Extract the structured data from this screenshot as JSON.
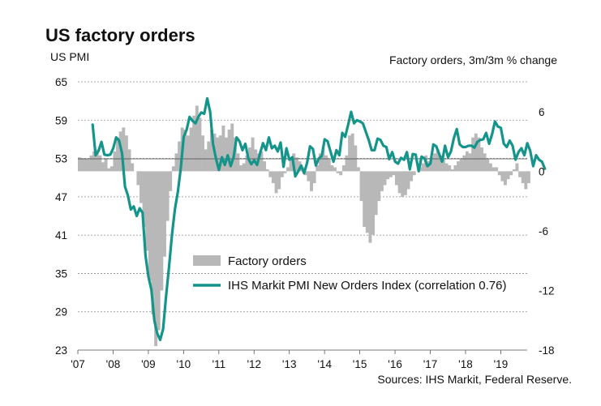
{
  "chart_data": {
    "type": "bar+line",
    "title": "US factory orders",
    "left_axis_label": "US PMI",
    "right_axis_label": "Factory orders, 3m/3m % change",
    "source": "Sources: IHS Markit, Federal Reserve.",
    "x_range": [
      2007.0,
      2019.75
    ],
    "x_ticks": [
      {
        "label": "'07",
        "x": 2007
      },
      {
        "label": "'08",
        "x": 2008
      },
      {
        "label": "'09",
        "x": 2009
      },
      {
        "label": "'10",
        "x": 2010
      },
      {
        "label": "'11",
        "x": 2011
      },
      {
        "label": "'12",
        "x": 2012
      },
      {
        "label": "'13",
        "x": 2013
      },
      {
        "label": "'14",
        "x": 2014
      },
      {
        "label": "'15",
        "x": 2015
      },
      {
        "label": "'16",
        "x": 2016
      },
      {
        "label": "'17",
        "x": 2017
      },
      {
        "label": "'18",
        "x": 2018
      },
      {
        "label": "'19",
        "x": 2019
      }
    ],
    "left_axis": {
      "min": 23,
      "max": 65,
      "ticks": [
        "65",
        "59",
        "53",
        "47",
        "41",
        "35",
        "29",
        "23"
      ]
    },
    "right_axis": {
      "min": -18,
      "max": 9,
      "ticks": [
        "6",
        "0",
        "-6",
        "-12",
        "-18"
      ]
    },
    "grid": "horizontal",
    "legend_placement": "bottom-center",
    "series": [
      {
        "name": "Factory orders",
        "type": "bar",
        "axis": "right",
        "color": "#b8b8b8",
        "start": 2007.0,
        "step": 0.08333,
        "values": [
          1.4,
          1.3,
          1.3,
          1.2,
          1.6,
          2.0,
          2.2,
          1.6,
          0.9,
          1.3,
          0.3,
          0.5,
          2.0,
          3.4,
          4.0,
          4.4,
          3.6,
          2.2,
          0.8,
          0.0,
          -1.4,
          -3.2,
          -5.6,
          -8.0,
          -11.0,
          -14.4,
          -17.6,
          -16.0,
          -12.0,
          -8.6,
          -5.0,
          -2.0,
          0.5,
          1.8,
          3.0,
          4.4,
          4.2,
          3.6,
          4.4,
          5.6,
          6.6,
          5.4,
          3.6,
          2.2,
          3.0,
          4.2,
          3.8,
          3.4,
          3.6,
          4.6,
          3.4,
          4.2,
          4.8,
          3.4,
          1.8,
          0.6,
          0.8,
          1.6,
          2.4,
          3.4,
          2.2,
          1.8,
          2.0,
          1.0,
          0.2,
          -0.6,
          -1.2,
          -2.2,
          -1.8,
          -0.6,
          -0.2,
          0.4,
          1.2,
          1.8,
          1.4,
          1.0,
          0.4,
          -0.4,
          -1.0,
          -2.0,
          -1.2,
          0.6,
          1.8,
          2.4,
          1.6,
          1.2,
          0.6,
          0.4,
          -0.2,
          -0.4,
          0.6,
          1.6,
          3.6,
          3.8,
          2.6,
          0.4,
          -3.0,
          -5.6,
          -6.2,
          -7.2,
          -6.4,
          -4.4,
          -3.0,
          -2.0,
          -1.4,
          -0.8,
          -0.6,
          -0.4,
          -1.4,
          -2.2,
          -2.6,
          -2.4,
          -1.8,
          -1.0,
          -0.4,
          0.0,
          0.4,
          0.8,
          1.6,
          1.0,
          1.4,
          1.8,
          2.2,
          1.6,
          1.2,
          0.8,
          0.6,
          0.2,
          0.6,
          1.0,
          1.2,
          1.6,
          2.0,
          1.8,
          3.4,
          3.8,
          3.4,
          2.4,
          1.8,
          1.2,
          0.8,
          0.4,
          0.4,
          -0.4,
          -1.0,
          -1.4,
          -0.8,
          -0.4,
          0.2,
          0.8,
          -0.6,
          -1.2,
          -1.8,
          -1.2
        ]
      },
      {
        "name": "IHS Markit PMI New Orders Index (correlation 0.76)",
        "type": "line",
        "axis": "left",
        "color": "#14948a",
        "start": 2007.42,
        "step": 0.08333,
        "values": [
          58.3,
          53.5,
          54.2,
          55.6,
          53.6,
          53.5,
          53.6,
          54.6,
          56.3,
          55.8,
          53.8,
          48.6,
          47.2,
          45.0,
          45.5,
          44.0,
          45.2,
          44.5,
          37.8,
          34.5,
          32.4,
          27.6,
          25.6,
          24.6,
          26.3,
          31.5,
          36.0,
          41.0,
          45.0,
          47.8,
          51.5,
          56.4,
          57.5,
          59.5,
          58.9,
          58.5,
          59.5,
          60.2,
          60.0,
          62.4,
          60.3,
          55.2,
          53.0,
          51.2,
          53.2,
          52.0,
          53.5,
          51.8,
          53.2,
          56.3,
          55.7,
          54.3,
          55.3,
          53.0,
          52.1,
          52.7,
          52.0,
          53.8,
          55.4,
          54.3,
          56.3,
          54.6,
          55.0,
          54.1,
          55.5,
          51.7,
          54.6,
          52.8,
          53.2,
          50.2,
          51.0,
          51.9,
          50.7,
          52.3,
          54.9,
          54.5,
          51.9,
          53.0,
          53.4,
          56.0,
          55.7,
          54.1,
          52.5,
          54.3,
          53.5,
          57.0,
          56.4,
          58.3,
          60.3,
          58.5,
          59.0,
          58.8,
          58.5,
          57.2,
          55.9,
          54.3,
          54.3,
          56.1,
          55.9,
          55.0,
          54.8,
          52.9,
          54.0,
          52.5,
          52.2,
          53.1,
          52.8,
          54.0,
          51.3,
          53.7,
          53.6,
          51.0,
          53.3,
          53.0,
          51.8,
          52.2,
          55.2,
          54.9,
          53.7,
          52.5,
          55.0,
          53.2,
          54.1,
          56.2,
          57.6,
          55.2,
          54.8,
          54.8,
          55.0,
          55.0,
          54.7,
          55.6,
          55.9,
          56.0,
          57.0,
          55.3,
          56.8,
          58.8,
          58.0,
          57.8,
          55.3,
          54.8,
          55.8,
          55.0,
          52.8,
          54.0,
          54.6,
          53.5,
          55.4,
          54.2,
          51.8,
          53.5,
          52.8,
          52.5,
          51.4
        ]
      }
    ]
  }
}
